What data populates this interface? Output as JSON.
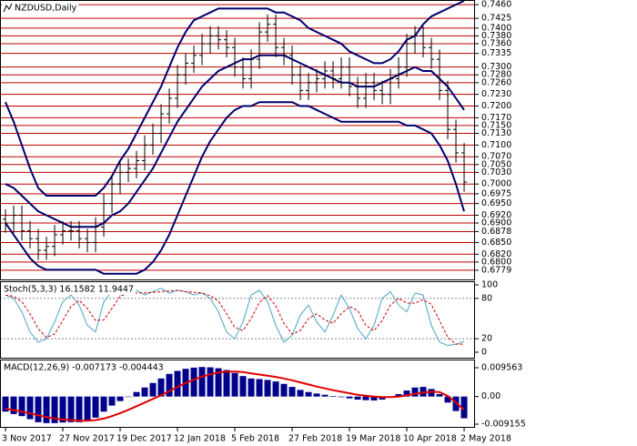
{
  "chart_data": [
    {
      "type": "ohlc",
      "title": "NZDUSD,Daily",
      "color": "#000000",
      "open": [
        0.691,
        0.69,
        0.692,
        0.688,
        0.686,
        0.683,
        0.684,
        0.687,
        0.688,
        0.688,
        0.686,
        0.685,
        0.689,
        0.695,
        0.7,
        0.703,
        0.704,
        0.706,
        0.71,
        0.713,
        0.718,
        0.722,
        0.728,
        0.731,
        0.733,
        0.736,
        0.738,
        0.737,
        0.735,
        0.73,
        0.727,
        0.732,
        0.739,
        0.741,
        0.735,
        0.733,
        0.728,
        0.724,
        0.726,
        0.727,
        0.729,
        0.727,
        0.73,
        0.725,
        0.722,
        0.726,
        0.724,
        0.723,
        0.727,
        0.73,
        0.736,
        0.738,
        0.735,
        0.732,
        0.724,
        0.714,
        0.708
      ],
      "high": [
        0.6935,
        0.6945,
        0.6945,
        0.6905,
        0.6885,
        0.6865,
        0.6895,
        0.6905,
        0.6905,
        0.6905,
        0.6885,
        0.6915,
        0.6975,
        0.7025,
        0.7055,
        0.7065,
        0.7085,
        0.7125,
        0.7155,
        0.7205,
        0.7245,
        0.7305,
        0.7335,
        0.7355,
        0.7385,
        0.7405,
        0.7405,
        0.7395,
        0.7375,
        0.7325,
        0.7345,
        0.7415,
        0.7435,
        0.7435,
        0.7375,
        0.7355,
        0.7305,
        0.7285,
        0.7295,
        0.7315,
        0.7315,
        0.7325,
        0.7325,
        0.7275,
        0.7285,
        0.7285,
        0.7265,
        0.7295,
        0.7325,
        0.7385,
        0.7405,
        0.7405,
        0.7375,
        0.7345,
        0.7265,
        0.7165,
        0.7105
      ],
      "low": [
        0.6875,
        0.6875,
        0.6855,
        0.6835,
        0.6805,
        0.6805,
        0.6815,
        0.6845,
        0.6855,
        0.6835,
        0.6825,
        0.6825,
        0.6865,
        0.6925,
        0.6975,
        0.7005,
        0.7015,
        0.7035,
        0.7075,
        0.7105,
        0.7155,
        0.7195,
        0.7255,
        0.7285,
        0.7305,
        0.7335,
        0.7345,
        0.7325,
        0.7275,
        0.7245,
        0.7245,
        0.7295,
        0.7365,
        0.7325,
        0.7305,
        0.7255,
        0.7215,
        0.7215,
        0.7235,
        0.7245,
        0.7245,
        0.7245,
        0.7225,
        0.7195,
        0.7195,
        0.7215,
        0.7205,
        0.7205,
        0.7245,
        0.7275,
        0.7335,
        0.7325,
        0.7295,
        0.7215,
        0.7115,
        0.7055,
        0.698
      ],
      "close": [
        0.69,
        0.692,
        0.688,
        0.686,
        0.683,
        0.684,
        0.687,
        0.688,
        0.688,
        0.686,
        0.685,
        0.689,
        0.695,
        0.7,
        0.703,
        0.704,
        0.706,
        0.71,
        0.713,
        0.718,
        0.722,
        0.728,
        0.731,
        0.733,
        0.736,
        0.738,
        0.737,
        0.735,
        0.73,
        0.727,
        0.732,
        0.739,
        0.741,
        0.735,
        0.733,
        0.728,
        0.724,
        0.726,
        0.727,
        0.729,
        0.727,
        0.73,
        0.725,
        0.722,
        0.726,
        0.724,
        0.723,
        0.727,
        0.73,
        0.736,
        0.738,
        0.735,
        0.732,
        0.724,
        0.714,
        0.708,
        0.7005
      ],
      "series": [
        {
          "color": "#00006e",
          "values": [
            0.721,
            0.716,
            0.71,
            0.704,
            0.699,
            0.697,
            0.697,
            0.697,
            0.697,
            0.697,
            0.697,
            0.697,
            0.699,
            0.702,
            0.706,
            0.709,
            0.713,
            0.717,
            0.721,
            0.725,
            0.73,
            0.735,
            0.739,
            0.742,
            0.743,
            0.744,
            0.745,
            0.745,
            0.745,
            0.745,
            0.745,
            0.745,
            0.745,
            0.744,
            0.744,
            0.743,
            0.742,
            0.74,
            0.739,
            0.738,
            0.737,
            0.736,
            0.734,
            0.733,
            0.732,
            0.731,
            0.731,
            0.732,
            0.734,
            0.737,
            0.738,
            0.741,
            0.743,
            0.744,
            0.745,
            0.746,
            0.747
          ]
        },
        {
          "color": "#00006e",
          "values": [
            0.7,
            0.699,
            0.697,
            0.695,
            0.693,
            0.692,
            0.691,
            0.69,
            0.689,
            0.689,
            0.689,
            0.689,
            0.69,
            0.692,
            0.693,
            0.695,
            0.698,
            0.701,
            0.704,
            0.708,
            0.712,
            0.716,
            0.719,
            0.722,
            0.725,
            0.727,
            0.729,
            0.73,
            0.731,
            0.732,
            0.732,
            0.733,
            0.733,
            0.733,
            0.733,
            0.732,
            0.731,
            0.73,
            0.729,
            0.728,
            0.727,
            0.726,
            0.726,
            0.725,
            0.725,
            0.725,
            0.726,
            0.727,
            0.728,
            0.729,
            0.73,
            0.729,
            0.729,
            0.727,
            0.725,
            0.722,
            0.719
          ]
        },
        {
          "color": "#00006e",
          "values": [
            0.69,
            0.687,
            0.684,
            0.681,
            0.679,
            0.678,
            0.678,
            0.678,
            0.678,
            0.678,
            0.678,
            0.678,
            0.677,
            0.677,
            0.677,
            0.677,
            0.677,
            0.678,
            0.68,
            0.683,
            0.687,
            0.692,
            0.697,
            0.702,
            0.707,
            0.711,
            0.714,
            0.717,
            0.719,
            0.72,
            0.72,
            0.721,
            0.721,
            0.721,
            0.721,
            0.721,
            0.72,
            0.72,
            0.719,
            0.718,
            0.717,
            0.716,
            0.716,
            0.716,
            0.716,
            0.716,
            0.716,
            0.716,
            0.716,
            0.715,
            0.715,
            0.714,
            0.713,
            0.71,
            0.706,
            0.7,
            0.693
          ]
        }
      ],
      "ylim": [
        0.6753,
        0.7472
      ],
      "yticks": [
        {
          "value": 0.746,
          "label": "0.7460"
        },
        {
          "value": 0.7425,
          "label": "0.7425"
        },
        {
          "value": 0.74,
          "label": "0.7400"
        },
        {
          "value": 0.738,
          "label": "0.7380"
        },
        {
          "value": 0.736,
          "label": "0.7360"
        },
        {
          "value": 0.7335,
          "label": "0.7335"
        },
        {
          "value": 0.73,
          "label": "0.7300"
        },
        {
          "value": 0.728,
          "label": "0.7280"
        },
        {
          "value": 0.726,
          "label": "0.7260"
        },
        {
          "value": 0.723,
          "label": "0.7230"
        },
        {
          "value": 0.72,
          "label": "0.7200"
        },
        {
          "value": 0.717,
          "label": "0.7170"
        },
        {
          "value": 0.715,
          "label": "0.7150"
        },
        {
          "value": 0.713,
          "label": "0.7130"
        },
        {
          "value": 0.71,
          "label": "0.7100"
        },
        {
          "value": 0.707,
          "label": "0.7070"
        },
        {
          "value": 0.705,
          "label": "0.7050"
        },
        {
          "value": 0.703,
          "label": "0.7030"
        },
        {
          "value": 0.7,
          "label": "0.7000"
        },
        {
          "value": 0.6975,
          "label": "0.6975"
        },
        {
          "value": 0.695,
          "label": "0.6950"
        },
        {
          "value": 0.692,
          "label": "0.6920"
        },
        {
          "value": 0.69,
          "label": "0.6900"
        },
        {
          "value": 0.6878,
          "label": "0.6878"
        },
        {
          "value": 0.685,
          "label": "0.6850"
        },
        {
          "value": 0.682,
          "label": "0.6820"
        },
        {
          "value": 0.68,
          "label": "0.6800"
        },
        {
          "value": 0.6779,
          "label": "0.6779"
        }
      ],
      "grid": true,
      "grid_color": "#c00000"
    },
    {
      "type": "stoch",
      "title": "Stoch(5,3,3) 16.1582 11.9447",
      "series": [
        {
          "color": "#4aa6c4",
          "dashed": false,
          "values": [
            85,
            80,
            60,
            30,
            15,
            20,
            45,
            75,
            85,
            70,
            40,
            30,
            75,
            90,
            85,
            88,
            92,
            85,
            90,
            95,
            88,
            92,
            90,
            85,
            88,
            80,
            60,
            30,
            20,
            45,
            85,
            92,
            75,
            40,
            15,
            25,
            55,
            70,
            45,
            30,
            55,
            85,
            65,
            35,
            20,
            40,
            80,
            90,
            70,
            60,
            88,
            85,
            40,
            15,
            10,
            12,
            16.16
          ]
        },
        {
          "color": "#d00000",
          "dashed": true,
          "values": [
            85,
            83,
            75,
            57,
            35,
            22,
            27,
            47,
            68,
            77,
            65,
            47,
            48,
            65,
            83,
            88,
            88,
            88,
            89,
            90,
            91,
            92,
            90,
            89,
            88,
            84,
            76,
            57,
            37,
            32,
            50,
            74,
            84,
            69,
            43,
            27,
            32,
            50,
            57,
            48,
            43,
            57,
            68,
            62,
            40,
            32,
            47,
            70,
            80,
            73,
            73,
            78,
            71,
            47,
            22,
            12,
            11.94
          ]
        }
      ],
      "levels": [
        80,
        20
      ],
      "ylim": [
        -9.5,
        105.4
      ],
      "yticks": [
        100,
        80,
        20,
        0
      ]
    },
    {
      "type": "macd",
      "title": "MACD(12,26,9) -0.007173 -0.004443",
      "series": [
        {
          "kind": "bar",
          "color": "#00008b",
          "values": [
            -0.005,
            -0.0058,
            -0.0065,
            -0.0075,
            -0.0085,
            -0.0088,
            -0.0088,
            -0.0086,
            -0.0085,
            -0.0085,
            -0.008,
            -0.007,
            -0.005,
            -0.003,
            -0.0015,
            0.0,
            0.0015,
            0.003,
            0.0045,
            0.006,
            0.0075,
            0.0085,
            0.0092,
            0.0096,
            0.0098,
            0.0097,
            0.0094,
            0.0088,
            0.0078,
            0.0068,
            0.006,
            0.0058,
            0.0055,
            0.005,
            0.0042,
            0.0032,
            0.0022,
            0.0015,
            0.001,
            0.0006,
            0.0002,
            -0.0002,
            -0.0006,
            -0.001,
            -0.0012,
            -0.0013,
            -0.001,
            -0.0004,
            0.0008,
            0.002,
            0.003,
            0.0032,
            0.0025,
            0.0008,
            -0.002,
            -0.0048,
            -0.0072
          ]
        },
        {
          "kind": "line",
          "color": "#e00000",
          "values": [
            -0.004,
            -0.0045,
            -0.005,
            -0.0056,
            -0.0062,
            -0.0068,
            -0.0073,
            -0.0076,
            -0.0078,
            -0.008,
            -0.008,
            -0.0078,
            -0.0073,
            -0.0065,
            -0.0055,
            -0.0044,
            -0.0032,
            -0.002,
            -0.0008,
            0.0004,
            0.0018,
            0.0032,
            0.0045,
            0.0056,
            0.0066,
            0.0074,
            0.008,
            0.0083,
            0.0083,
            0.0081,
            0.0077,
            0.0073,
            0.0069,
            0.0065,
            0.006,
            0.0054,
            0.0047,
            0.004,
            0.0033,
            0.0027,
            0.0021,
            0.0016,
            0.0011,
            0.0006,
            0.0003,
            0.0,
            -0.0002,
            -0.0002,
            0.0,
            0.0004,
            0.0009,
            0.0013,
            0.0016,
            0.0015,
            0.0002,
            -0.002,
            -0.0044
          ]
        }
      ],
      "ylim": [
        -0.01036,
        0.01228
      ],
      "yticks": [
        0.009563,
        {
          "value": 0,
          "label": "0.00"
        },
        -0.009155
      ],
      "xlim": [
        -0.67,
        57.33
      ],
      "xticks": [
        {
          "value": 0,
          "label": "3 Nov 2017"
        },
        {
          "value": 7,
          "label": "27 Nov 2017"
        },
        {
          "value": 14,
          "label": "19 Dec 2017"
        },
        {
          "value": 21,
          "label": "12 Jan 2018"
        },
        {
          "value": 28,
          "label": "5 Feb 2018"
        },
        {
          "value": 35,
          "label": "27 Feb 2018"
        },
        {
          "value": 42,
          "label": "19 Mar 2018"
        },
        {
          "value": 49,
          "label": "10 Apr 2018"
        },
        {
          "value": 56,
          "label": "2 May 2018"
        }
      ]
    }
  ]
}
